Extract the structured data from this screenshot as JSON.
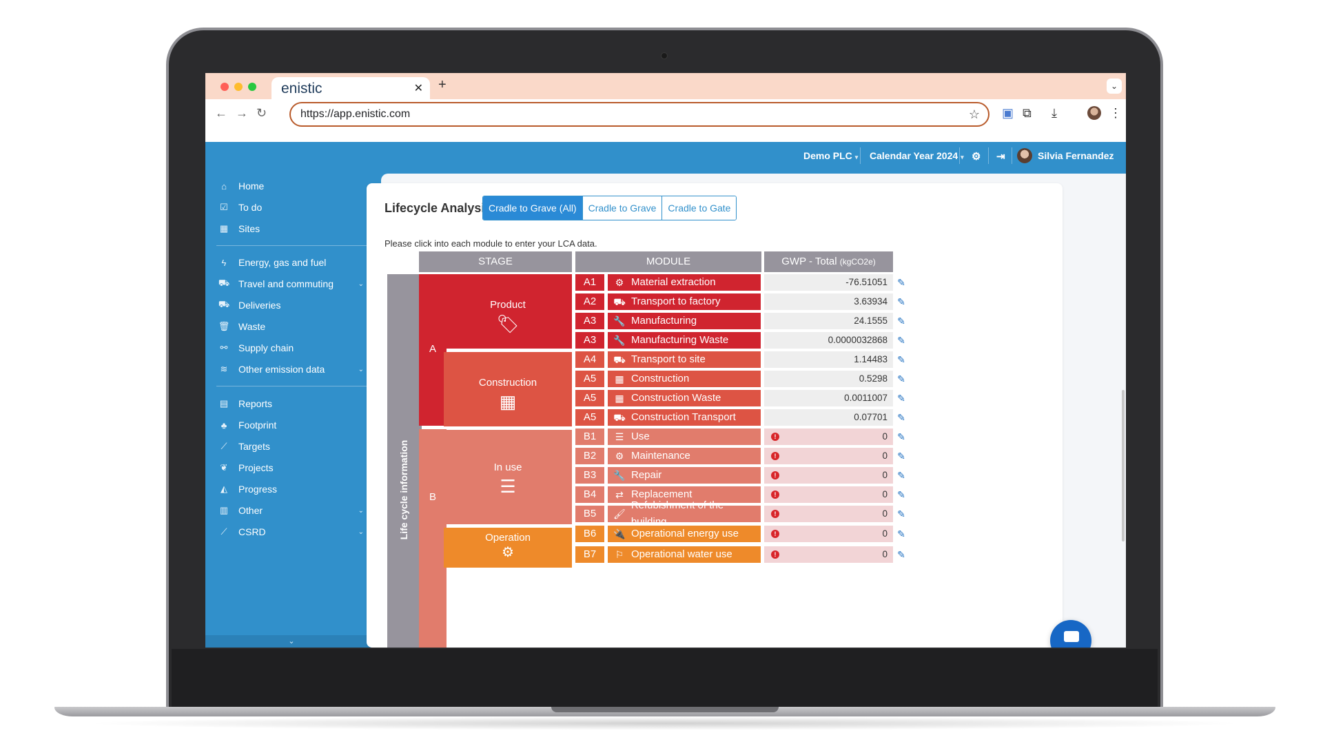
{
  "browser": {
    "tab_title": "enistic",
    "url": "https://app.enistic.com"
  },
  "topbar": {
    "company": "Demo PLC",
    "period": "Calendar Year 2024",
    "user": "Silvia Fernandez"
  },
  "sidebar": {
    "group1": [
      {
        "label": "Home",
        "icon": "home-icon"
      },
      {
        "label": "To do",
        "icon": "checkbox-icon"
      },
      {
        "label": "Sites",
        "icon": "building-icon"
      }
    ],
    "group2": [
      {
        "label": "Energy, gas and fuel",
        "icon": "bolt-icon"
      },
      {
        "label": "Travel and commuting",
        "icon": "car-icon"
      },
      {
        "label": "Deliveries",
        "icon": "truck-icon"
      },
      {
        "label": "Waste",
        "icon": "trash-icon"
      },
      {
        "label": "Supply chain",
        "icon": "link-icon"
      },
      {
        "label": "Other emission data",
        "icon": "database-icon"
      }
    ],
    "group3": [
      {
        "label": "Reports",
        "icon": "file-icon"
      },
      {
        "label": "Footprint",
        "icon": "tree-icon"
      },
      {
        "label": "Targets",
        "icon": "line-chart-icon"
      },
      {
        "label": "Projects",
        "icon": "leaf-icon"
      },
      {
        "label": "Progress",
        "icon": "area-chart-icon"
      },
      {
        "label": "Other",
        "icon": "bar-chart-icon"
      },
      {
        "label": "CSRD",
        "icon": "line-chart-icon"
      }
    ]
  },
  "page": {
    "title": "Lifecycle Analysis",
    "tabs": [
      "Cradle to Grave (All)",
      "Cradle to Grave",
      "Cradle to Gate"
    ],
    "instruction": "Please click into each module to enter your LCA data."
  },
  "table": {
    "headers": {
      "stage": "STAGE",
      "module": "MODULE",
      "gwp": "GWP - Total",
      "gwp_unit": "(kgCO2e)"
    },
    "side_label": "Life cycle information",
    "stage_letters": [
      "A",
      "B"
    ],
    "stages": [
      {
        "name": "Product",
        "icon": "tags-icon",
        "color": "#d0242f"
      },
      {
        "name": "Construction",
        "icon": "building-icon",
        "color": "#dd5444"
      },
      {
        "name": "In use",
        "icon": "server-icon",
        "color": "#e17c6c"
      },
      {
        "name": "Operation",
        "icon": "cogs-icon",
        "color": "#ee8a2a"
      }
    ],
    "rows": [
      {
        "code": "A1",
        "module": "Material extraction",
        "icon": "cogs-icon",
        "value": "-76.51051",
        "status": "ok",
        "color": "#d0242f"
      },
      {
        "code": "A2",
        "module": "Transport to factory",
        "icon": "truck-icon",
        "value": "3.63934",
        "status": "ok",
        "color": "#d0242f"
      },
      {
        "code": "A3",
        "module": "Manufacturing",
        "icon": "wrench-icon",
        "value": "24.1555",
        "status": "ok",
        "color": "#d0242f"
      },
      {
        "code": "A3",
        "module": "Manufacturing Waste",
        "icon": "wrench-icon",
        "value": "0.0000032868",
        "status": "ok",
        "color": "#d0242f"
      },
      {
        "code": "A4",
        "module": "Transport to site",
        "icon": "truck-icon",
        "value": "1.14483",
        "status": "ok",
        "color": "#dd5444"
      },
      {
        "code": "A5",
        "module": "Construction",
        "icon": "building-icon",
        "value": "0.5298",
        "status": "ok",
        "color": "#dd5444"
      },
      {
        "code": "A5",
        "module": "Construction Waste",
        "icon": "building-icon",
        "value": "0.0011007",
        "status": "ok",
        "color": "#dd5444"
      },
      {
        "code": "A5",
        "module": "Construction Transport",
        "icon": "truck-icon",
        "value": "0.07701",
        "status": "ok",
        "color": "#dd5444"
      },
      {
        "code": "B1",
        "module": "Use",
        "icon": "server-icon",
        "value": "0",
        "status": "warn",
        "color": "#e17c6c"
      },
      {
        "code": "B2",
        "module": "Maintenance",
        "icon": "cogs-icon",
        "value": "0",
        "status": "warn",
        "color": "#e17c6c"
      },
      {
        "code": "B3",
        "module": "Repair",
        "icon": "wrench-icon",
        "value": "0",
        "status": "warn",
        "color": "#e17c6c"
      },
      {
        "code": "B4",
        "module": "Replacement",
        "icon": "exchange-icon",
        "value": "0",
        "status": "warn",
        "color": "#e17c6c"
      },
      {
        "code": "B5",
        "module": "Refubishment of the building",
        "icon": "paint-brush-icon",
        "value": "0",
        "status": "warn",
        "color": "#e17c6c"
      },
      {
        "code": "B6",
        "module": "Operational energy use",
        "icon": "plug-icon",
        "value": "0",
        "status": "warn",
        "color": "#ee8a2a"
      },
      {
        "code": "B7",
        "module": "Operational water use",
        "icon": "faucet-icon",
        "value": "0",
        "status": "warn",
        "color": "#ee8a2a"
      }
    ]
  }
}
